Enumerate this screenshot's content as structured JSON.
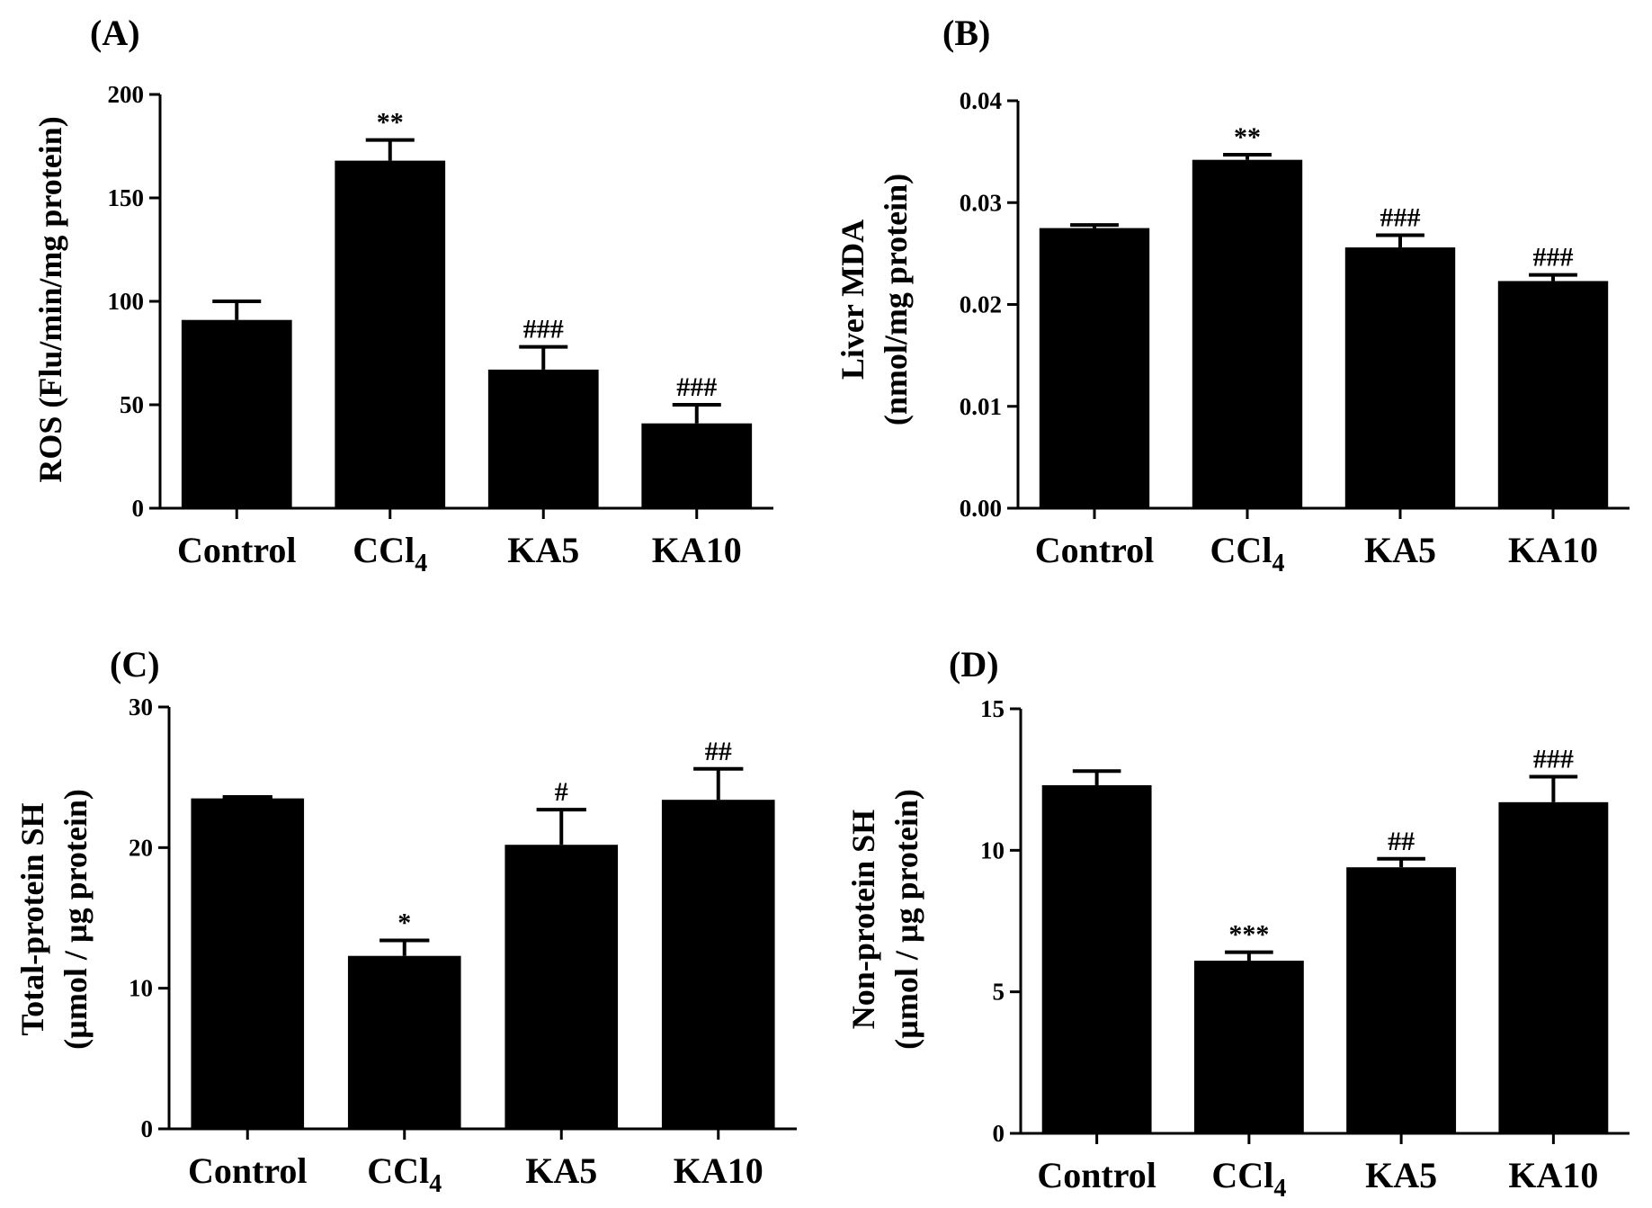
{
  "figure": {
    "background": "#ffffff",
    "bar_color": "#000000"
  },
  "chart_data": [
    {
      "type": "bar",
      "panel_label": "(A)",
      "title": "",
      "categories": [
        "Control",
        "CCl",
        "KA5",
        "KA10"
      ],
      "category_subscripts": [
        "",
        "4",
        "",
        ""
      ],
      "values": [
        91,
        168,
        67,
        41
      ],
      "errors": [
        9,
        10,
        11,
        9
      ],
      "annotations": [
        "",
        "**",
        "###",
        "###"
      ],
      "xlabel": "",
      "ylabel": "ROS (Flu/min/mg protein)",
      "ylim": [
        0,
        200
      ],
      "yticks": [
        "0",
        "50",
        "100",
        "150",
        "200"
      ],
      "grid": false,
      "legend": "none"
    },
    {
      "type": "bar",
      "panel_label": "(B)",
      "title": "",
      "categories": [
        "Control",
        "CCl",
        "KA5",
        "KA10"
      ],
      "category_subscripts": [
        "",
        "4",
        "",
        ""
      ],
      "values": [
        0.0275,
        0.0342,
        0.0256,
        0.0223
      ],
      "errors": [
        0.0003,
        0.0005,
        0.0012,
        0.0006
      ],
      "annotations": [
        "",
        "**",
        "###",
        "###"
      ],
      "xlabel": "",
      "ylabel": "Liver MDA",
      "ylabel2": "(nmol/mg protein)",
      "ylim": [
        0,
        0.04
      ],
      "yticks": [
        "0.00",
        "0.01",
        "0.02",
        "0.03",
        "0.04"
      ],
      "grid": false,
      "legend": "none"
    },
    {
      "type": "bar",
      "panel_label": "(C)",
      "title": "",
      "categories": [
        "Control",
        "CCl",
        "KA5",
        "KA10"
      ],
      "category_subscripts": [
        "",
        "4",
        "",
        ""
      ],
      "values": [
        23.5,
        12.3,
        20.2,
        23.4
      ],
      "errors": [
        0.1,
        1.1,
        2.5,
        2.2
      ],
      "annotations": [
        "",
        "*",
        "#",
        "##"
      ],
      "xlabel": "",
      "ylabel": "Total-protein SH",
      "ylabel2": "(µmol / µg protein)",
      "ylim": [
        0,
        30
      ],
      "yticks": [
        "0",
        "10",
        "20",
        "30"
      ],
      "grid": false,
      "legend": "none"
    },
    {
      "type": "bar",
      "panel_label": "(D)",
      "title": "",
      "categories": [
        "Control",
        "CCl",
        "KA5",
        "KA10"
      ],
      "category_subscripts": [
        "",
        "4",
        "",
        ""
      ],
      "values": [
        12.3,
        6.1,
        9.4,
        11.7
      ],
      "errors": [
        0.5,
        0.3,
        0.3,
        0.9
      ],
      "annotations": [
        "",
        "***",
        "##",
        "###"
      ],
      "xlabel": "",
      "ylabel": "Non-protein SH",
      "ylabel2": "(µmol / µg protein)",
      "ylim": [
        0,
        15
      ],
      "yticks": [
        "0",
        "5",
        "10",
        "15"
      ],
      "grid": false,
      "legend": "none"
    }
  ]
}
